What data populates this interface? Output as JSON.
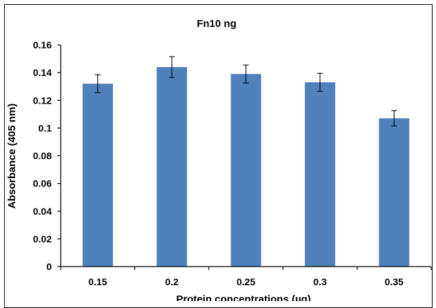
{
  "chart_data": {
    "type": "bar",
    "title": "Fn10 ng",
    "xlabel": "Protein concentrations (µg)",
    "ylabel": "Absorbance (405 nm)",
    "categories": [
      "0.15",
      "0.2",
      "0.25",
      "0.3",
      "0.35"
    ],
    "values": [
      0.132,
      0.144,
      0.139,
      0.133,
      0.107
    ],
    "errors": [
      0.0065,
      0.0075,
      0.0065,
      0.0065,
      0.0055
    ],
    "ylim": [
      0,
      0.16
    ],
    "yticks": [
      "0",
      "0.02",
      "0.04",
      "0.06",
      "0.08",
      "0.1",
      "0.12",
      "0.14",
      "0.16"
    ],
    "grid": false,
    "legend": "none",
    "bar_color": "#4f81bd",
    "errorbar_color": "#000000"
  }
}
